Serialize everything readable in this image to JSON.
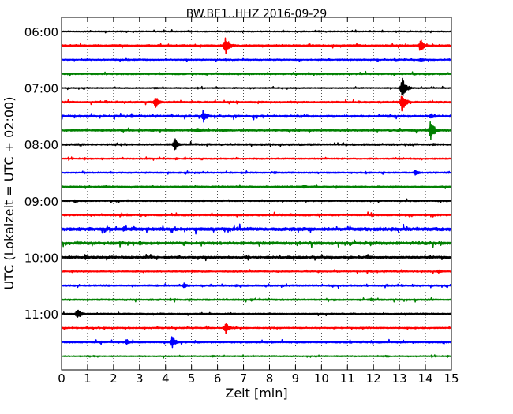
{
  "chart_data": {
    "type": "line",
    "title": "BW.BE1..HHZ 2016-09-29",
    "xlabel": "Zeit  [min]",
    "ylabel": "UTC (Lokalzeit = UTC + 02:00)",
    "xlim": [
      0,
      15
    ],
    "x_ticks": [
      0,
      1,
      2,
      3,
      4,
      5,
      6,
      7,
      8,
      9,
      10,
      11,
      12,
      13,
      14,
      15
    ],
    "y_tick_labels": [
      "06:00",
      "07:00",
      "08:00",
      "09:00",
      "10:00",
      "11:00"
    ],
    "trace_interval_min": 15,
    "grid": "vertical dotted",
    "colors": [
      "#000000",
      "#ff0000",
      "#0000ff",
      "#008000"
    ],
    "traces": [
      {
        "start": "06:00",
        "events": [
          [
            6.3,
            0.08
          ],
          [
            13.8,
            0.08
          ]
        ],
        "noise": 0.05
      },
      {
        "start": "06:15",
        "events": [
          [
            6.3,
            1.0
          ],
          [
            13.8,
            0.7
          ]
        ],
        "noise": 0.08
      },
      {
        "start": "06:30",
        "events": [
          [
            6.3,
            0.12
          ],
          [
            13.8,
            0.2
          ]
        ],
        "noise": 0.06
      },
      {
        "start": "06:45",
        "events": [
          [
            6.3,
            0.12
          ],
          [
            13.6,
            0.1
          ]
        ],
        "noise": 0.07
      },
      {
        "start": "07:00",
        "events": [
          [
            3.6,
            0.12
          ],
          [
            13.1,
            1.1
          ]
        ],
        "noise": 0.05
      },
      {
        "start": "07:15",
        "events": [
          [
            3.6,
            0.7
          ],
          [
            13.1,
            1.0
          ]
        ],
        "noise": 0.08
      },
      {
        "start": "07:30",
        "events": [
          [
            5.45,
            0.65
          ],
          [
            14.2,
            0.3
          ]
        ],
        "noise": 0.1
      },
      {
        "start": "07:45",
        "events": [
          [
            5.2,
            0.3
          ],
          [
            14.2,
            1.15
          ]
        ],
        "noise": 0.08
      },
      {
        "start": "08:00",
        "events": [
          [
            4.35,
            0.65
          ],
          [
            14.3,
            0.15
          ]
        ],
        "noise": 0.08
      },
      {
        "start": "08:15",
        "events": [
          [
            4.4,
            0.12
          ]
        ],
        "noise": 0.06
      },
      {
        "start": "08:30",
        "events": [
          [
            8.2,
            0.15
          ],
          [
            13.6,
            0.3
          ]
        ],
        "noise": 0.06
      },
      {
        "start": "08:45",
        "events": [
          [
            1.7,
            0.15
          ],
          [
            9.3,
            0.15
          ]
        ],
        "noise": 0.07
      },
      {
        "start": "09:00",
        "events": [
          [
            0.5,
            0.2
          ]
        ],
        "noise": 0.06
      },
      {
        "start": "09:15",
        "events": [
          [
            2.5,
            0.15
          ],
          [
            8.8,
            0.15
          ]
        ],
        "noise": 0.08
      },
      {
        "start": "09:30",
        "events": [
          [
            2.4,
            0.3
          ],
          [
            12.7,
            0.2
          ]
        ],
        "noise": 0.14
      },
      {
        "start": "09:45",
        "events": [
          [
            3.0,
            0.25
          ],
          [
            7.5,
            0.15
          ]
        ],
        "noise": 0.12
      },
      {
        "start": "10:00",
        "events": [
          [
            0.9,
            0.3
          ]
        ],
        "noise": 0.1
      },
      {
        "start": "10:15",
        "events": [
          [
            0.4,
            0.12
          ],
          [
            14.5,
            0.2
          ]
        ],
        "noise": 0.06
      },
      {
        "start": "10:30",
        "events": [
          [
            4.7,
            0.3
          ],
          [
            6.7,
            0.15
          ]
        ],
        "noise": 0.07
      },
      {
        "start": "10:45",
        "events": [
          [
            7.3,
            0.15
          ],
          [
            11.9,
            0.2
          ]
        ],
        "noise": 0.07
      },
      {
        "start": "11:00",
        "events": [
          [
            0.6,
            0.55
          ],
          [
            3.8,
            0.15
          ]
        ],
        "noise": 0.06
      },
      {
        "start": "11:15",
        "events": [
          [
            6.3,
            0.65
          ],
          [
            13.6,
            0.1
          ]
        ],
        "noise": 0.06
      },
      {
        "start": "11:30",
        "events": [
          [
            2.5,
            0.3
          ],
          [
            4.25,
            0.6
          ]
        ],
        "noise": 0.08
      },
      {
        "start": "11:45",
        "events": [
          [
            5.8,
            0.12
          ],
          [
            12.5,
            0.12
          ]
        ],
        "noise": 0.05
      }
    ]
  }
}
